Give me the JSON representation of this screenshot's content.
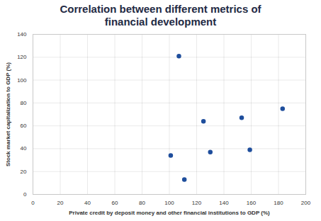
{
  "chart_data": {
    "type": "scatter",
    "title": "Correlation between different metrics of financial development",
    "x_label": "Private credit by deposit money and other financial institutions to GDP (%)",
    "y_label": "Stock market capitalization to GDP (%)",
    "x": [
      107,
      125,
      153,
      183,
      101,
      130,
      159,
      111
    ],
    "values": [
      121,
      64,
      67,
      75,
      34,
      37,
      39,
      13
    ],
    "color": "#1f4e9c",
    "marker": "circle",
    "xlim": [
      0,
      200
    ],
    "xticks": [
      0,
      20,
      40,
      60,
      80,
      100,
      120,
      140,
      160,
      180,
      200
    ],
    "ylim": [
      0,
      140
    ],
    "yticks": [
      0,
      20,
      40,
      60,
      80,
      100,
      120,
      140
    ],
    "grid": true
  }
}
